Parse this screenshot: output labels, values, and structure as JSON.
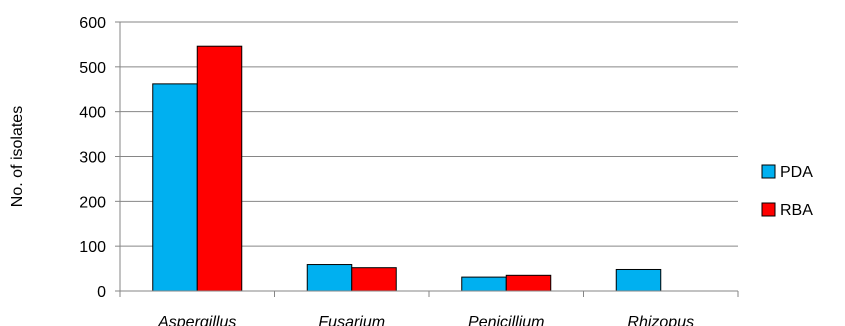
{
  "chart_data": {
    "type": "bar",
    "categories": [
      "Aspergillus",
      "Fusarium",
      "Penicillium",
      "Rhizopus"
    ],
    "series": [
      {
        "name": "PDA",
        "values": [
          462,
          59,
          31,
          48
        ],
        "color": "#00b0f0"
      },
      {
        "name": "RBA",
        "values": [
          546,
          52,
          35,
          0
        ],
        "color": "#ff0000"
      }
    ],
    "title": "",
    "xlabel": "",
    "ylabel": "No. of isolates",
    "ylim": [
      0,
      600
    ],
    "yticks": [
      0,
      100,
      200,
      300,
      400,
      500,
      600
    ],
    "grid": true,
    "legend_position": "right"
  }
}
